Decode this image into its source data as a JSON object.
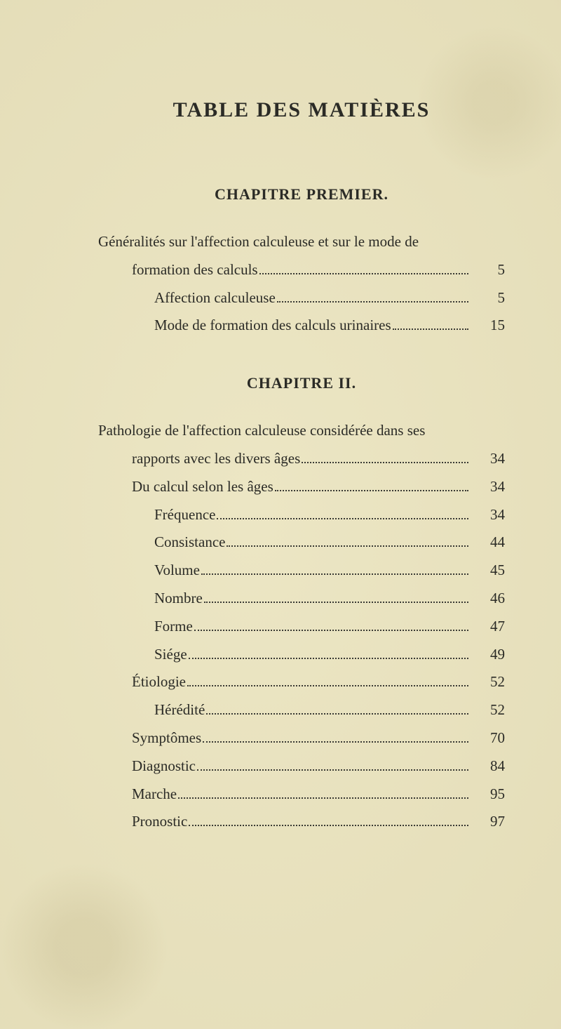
{
  "colors": {
    "paper_bg": "#e8e2c0",
    "ink": "#2b2b26",
    "leader": "#3a3a34"
  },
  "typography": {
    "title_size_pt": 22,
    "chapter_size_pt": 16,
    "body_size_pt": 15,
    "font_family": "Times New Roman"
  },
  "title": "TABLE DES MATIÈRES",
  "chapters": [
    {
      "heading": "CHAPITRE PREMIER.",
      "entries": [
        {
          "indent": 0,
          "label_line1": "Généralités sur l'affection calculeuse et sur le mode de",
          "label_line2": "formation des calculs",
          "page": "5"
        },
        {
          "indent": 2,
          "label": "Affection calculeuse",
          "page": "5"
        },
        {
          "indent": 2,
          "label": "Mode de formation des calculs urinaires",
          "page": "15"
        }
      ]
    },
    {
      "heading": "CHAPITRE II.",
      "entries": [
        {
          "indent": 0,
          "label_line1": "Pathologie de l'affection calculeuse considérée dans ses",
          "label_line2": "rapports avec les divers âges",
          "page": "34"
        },
        {
          "indent": 1,
          "label": "Du calcul selon les âges",
          "page": "34"
        },
        {
          "indent": 2,
          "label": "Fréquence",
          "page": "34"
        },
        {
          "indent": 2,
          "label": "Consistance",
          "page": "44"
        },
        {
          "indent": 2,
          "label": "Volume",
          "page": "45"
        },
        {
          "indent": 2,
          "label": "Nombre",
          "page": "46"
        },
        {
          "indent": 2,
          "label": "Forme",
          "page": "47"
        },
        {
          "indent": 2,
          "label": "Siége",
          "page": "49"
        },
        {
          "indent": 1,
          "label": "Étiologie",
          "page": "52"
        },
        {
          "indent": 2,
          "label": "Hérédité",
          "page": "52"
        },
        {
          "indent": 1,
          "label": "Symptômes",
          "page": "70"
        },
        {
          "indent": 1,
          "label": "Diagnostic",
          "page": "84"
        },
        {
          "indent": 1,
          "label": "Marche",
          "page": "95"
        },
        {
          "indent": 1,
          "label": "Pronostic",
          "page": "97"
        }
      ]
    }
  ]
}
